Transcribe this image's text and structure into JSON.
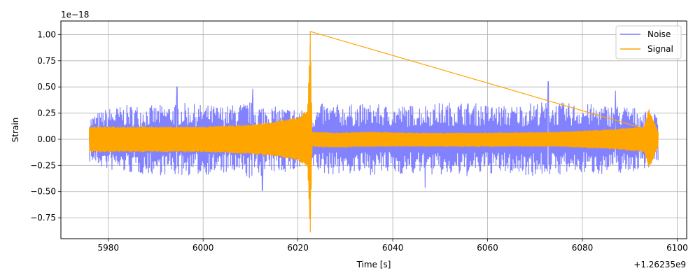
{
  "chart_data": {
    "type": "line",
    "title": "",
    "xlabel": "Time [s]",
    "ylabel": "Strain",
    "x_offset_label": "+1.26235e9",
    "y_scale_label": "1e−18",
    "xlim": [
      5970,
      6102
    ],
    "ylim": [
      -0.95,
      1.13
    ],
    "xticks": [
      5980,
      6000,
      6020,
      6040,
      6060,
      6080,
      6100
    ],
    "yticks": [
      -0.75,
      -0.5,
      -0.25,
      0.0,
      0.25,
      0.5,
      0.75,
      1.0
    ],
    "ytick_labels": [
      "−0.75",
      "−0.50",
      "−0.25",
      "0.00",
      "0.25",
      "0.50",
      "0.75",
      "1.00"
    ],
    "grid": true,
    "legend_position": "top-right",
    "series": [
      {
        "name": "Noise",
        "color": "#7b7bff",
        "x": [
          5976,
          5980,
          5985,
          5990,
          5995,
          6000,
          6005,
          6010,
          6015,
          6020,
          6022.6,
          6025,
          6030,
          6035,
          6040,
          6045,
          6050,
          6055,
          6060,
          6065,
          6070,
          6075,
          6080,
          6085,
          6090,
          6096
        ],
        "upper": [
          0.22,
          0.3,
          0.33,
          0.32,
          0.35,
          0.33,
          0.32,
          0.36,
          0.31,
          0.3,
          0.25,
          0.34,
          0.33,
          0.34,
          0.32,
          0.33,
          0.35,
          0.36,
          0.33,
          0.32,
          0.36,
          0.35,
          0.34,
          0.33,
          0.32,
          0.24
        ],
        "lower": [
          -0.22,
          -0.3,
          -0.33,
          -0.34,
          -0.35,
          -0.34,
          -0.33,
          -0.38,
          -0.32,
          -0.31,
          -0.25,
          -0.34,
          -0.33,
          -0.34,
          -0.33,
          -0.34,
          -0.35,
          -0.36,
          -0.33,
          -0.33,
          -0.35,
          -0.34,
          -0.33,
          -0.33,
          -0.32,
          -0.24
        ],
        "peaks": [
          {
            "x": 5994.5,
            "y": 0.5
          },
          {
            "x": 6010.5,
            "y": 0.48
          },
          {
            "x": 6012.5,
            "y": -0.49
          },
          {
            "x": 6072.8,
            "y": 0.55
          },
          {
            "x": 6046.8,
            "y": -0.46
          },
          {
            "x": 6087.0,
            "y": 0.46
          }
        ]
      },
      {
        "name": "Signal",
        "color": "#ffa500",
        "x": [
          5976,
          5990,
          6000,
          6010,
          6015,
          6020,
          6022,
          6022.6,
          6023,
          6028,
          6035,
          6045,
          6060,
          6075,
          6085,
          6093,
          6094,
          6096
        ],
        "upper": [
          0.12,
          0.12,
          0.12,
          0.14,
          0.17,
          0.21,
          0.28,
          1.03,
          0.07,
          0.06,
          0.07,
          0.06,
          0.06,
          0.07,
          0.09,
          0.12,
          0.3,
          0.07
        ],
        "lower": [
          -0.12,
          -0.12,
          -0.12,
          -0.14,
          -0.16,
          -0.2,
          -0.27,
          -0.89,
          -0.07,
          -0.08,
          -0.07,
          -0.07,
          -0.07,
          -0.07,
          -0.09,
          -0.12,
          -0.28,
          -0.07
        ]
      }
    ]
  }
}
